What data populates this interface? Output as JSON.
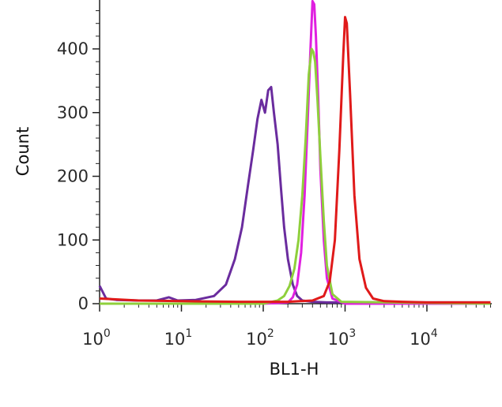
{
  "chart_data": {
    "type": "line",
    "title": "",
    "xlabel": "BL1-H",
    "ylabel": "Count",
    "xscale": "log",
    "xlim": [
      1,
      60000
    ],
    "ylim": [
      0,
      470
    ],
    "grid": false,
    "legend": "none",
    "x_ticks": [
      {
        "value": 1,
        "base": "10",
        "exp": "0"
      },
      {
        "value": 10,
        "base": "10",
        "exp": "1"
      },
      {
        "value": 100,
        "base": "10",
        "exp": "2"
      },
      {
        "value": 1000,
        "base": "10",
        "exp": "3"
      },
      {
        "value": 10000,
        "base": "10",
        "exp": "4"
      }
    ],
    "y_ticks": [
      "0",
      "100",
      "200",
      "300",
      "400"
    ],
    "series": [
      {
        "color": "#6a2c9e",
        "x": [
          1,
          1.2,
          1.6,
          3,
          5,
          7,
          9,
          15,
          25,
          35,
          45,
          55,
          65,
          75,
          85,
          95,
          105,
          115,
          125,
          135,
          150,
          165,
          180,
          200,
          230,
          260,
          300,
          400,
          600,
          1000,
          3000,
          10000,
          60000
        ],
        "y": [
          28,
          8,
          6,
          5,
          5,
          10,
          5,
          6,
          12,
          30,
          70,
          120,
          185,
          240,
          290,
          320,
          300,
          335,
          340,
          300,
          250,
          180,
          120,
          70,
          30,
          12,
          5,
          3,
          2,
          2,
          2,
          2,
          2
        ]
      },
      {
        "color": "#e020e0",
        "x": [
          1,
          100,
          200,
          230,
          260,
          290,
          320,
          350,
          375,
          400,
          420,
          440,
          470,
          500,
          550,
          600,
          700,
          1000,
          60000
        ],
        "y": [
          0,
          0,
          2,
          10,
          30,
          80,
          170,
          290,
          390,
          475,
          470,
          420,
          320,
          210,
          100,
          40,
          8,
          0,
          0
        ]
      },
      {
        "color": "#8fcf3c",
        "x": [
          1,
          100,
          150,
          180,
          210,
          240,
          270,
          300,
          330,
          360,
          390,
          410,
          430,
          460,
          500,
          550,
          600,
          700,
          900,
          60000
        ],
        "y": [
          0,
          0,
          5,
          12,
          28,
          55,
          100,
          170,
          260,
          360,
          400,
          395,
          380,
          320,
          230,
          130,
          60,
          15,
          3,
          0
        ]
      },
      {
        "color": "#e01a1a",
        "x": [
          1,
          3,
          10,
          50,
          200,
          400,
          550,
          650,
          750,
          850,
          950,
          1000,
          1050,
          1150,
          1300,
          1500,
          1800,
          2200,
          3000,
          5000,
          10000,
          60000
        ],
        "y": [
          8,
          5,
          4,
          3,
          3,
          5,
          12,
          35,
          100,
          240,
          390,
          450,
          440,
          330,
          170,
          70,
          25,
          8,
          4,
          3,
          2,
          2
        ]
      }
    ]
  }
}
